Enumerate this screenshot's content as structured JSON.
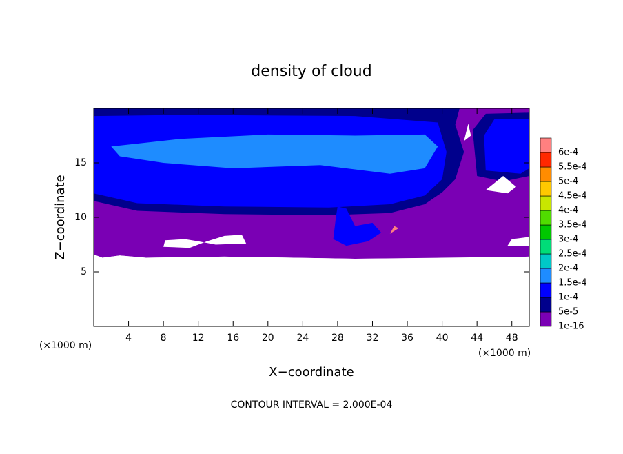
{
  "chart_data": {
    "type": "contour",
    "title": "density of cloud",
    "x_label": "X−coordinate",
    "y_label": "Z−coordinate",
    "x_unit": "(×1000 m)",
    "y_unit": "(×1000 m)",
    "xlim": [
      0,
      50
    ],
    "ylim": [
      0,
      20
    ],
    "xticks": [
      4,
      8,
      12,
      16,
      20,
      24,
      28,
      32,
      36,
      40,
      44,
      48
    ],
    "yticks": [
      5,
      10,
      15
    ],
    "colorbar": {
      "levels": [
        {
          "value": 1e-16,
          "label": "1e-16"
        },
        {
          "value": 5e-05,
          "label": "5e-5"
        },
        {
          "value": 0.0001,
          "label": "1e-4"
        },
        {
          "value": 0.00015,
          "label": "1.5e-4"
        },
        {
          "value": 0.0002,
          "label": "2e-4"
        },
        {
          "value": 0.00025,
          "label": "2.5e-4"
        },
        {
          "value": 0.0003,
          "label": "3e-4"
        },
        {
          "value": 0.00035,
          "label": "3.5e-4"
        },
        {
          "value": 0.0004,
          "label": "4e-4"
        },
        {
          "value": 0.00045,
          "label": "4.5e-4"
        },
        {
          "value": 0.0005,
          "label": "5e-4"
        },
        {
          "value": 0.00055,
          "label": "5.5e-4"
        },
        {
          "value": 0.0006,
          "label": "6e-4"
        }
      ],
      "colors": [
        "#7a00b4",
        "#00008c",
        "#0000ff",
        "#1e8cff",
        "#00c8c8",
        "#00dc78",
        "#00c800",
        "#50dc00",
        "#c8e600",
        "#ffc800",
        "#ff8c00",
        "#ff2800",
        "#ff8080"
      ]
    },
    "note": "CONTOUR INTERVAL = 2.000E-04"
  }
}
